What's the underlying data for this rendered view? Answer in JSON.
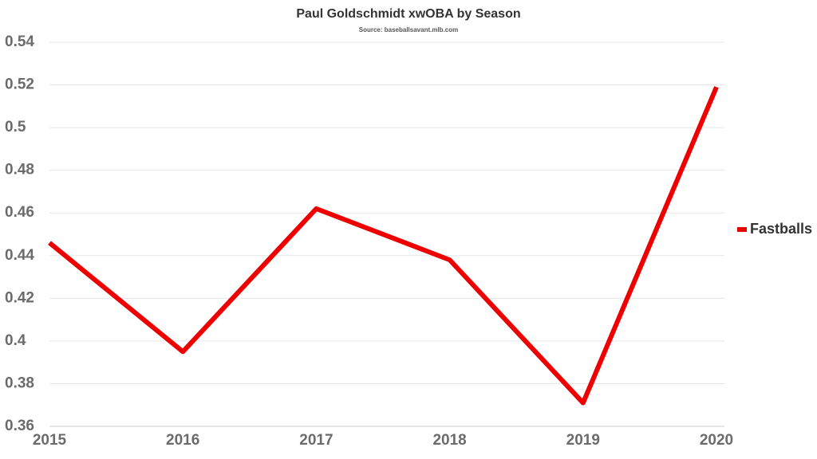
{
  "chart_data": {
    "type": "line",
    "title": "Paul Goldschmidt xwOBA by Season",
    "subtitle": "Source: baseballsavant.mlb.com",
    "categories": [
      "2015",
      "2016",
      "2017",
      "2018",
      "2019",
      "2020"
    ],
    "series": [
      {
        "name": "Fastballs",
        "color": "#ee0000",
        "values": [
          0.446,
          0.395,
          0.462,
          0.438,
          0.371,
          0.519
        ]
      }
    ],
    "ylim": [
      0.36,
      0.54
    ],
    "yticks": [
      0.36,
      0.38,
      0.4,
      0.42,
      0.44,
      0.46,
      0.48,
      0.5,
      0.52,
      0.54
    ],
    "grid": true,
    "legend": "right"
  }
}
